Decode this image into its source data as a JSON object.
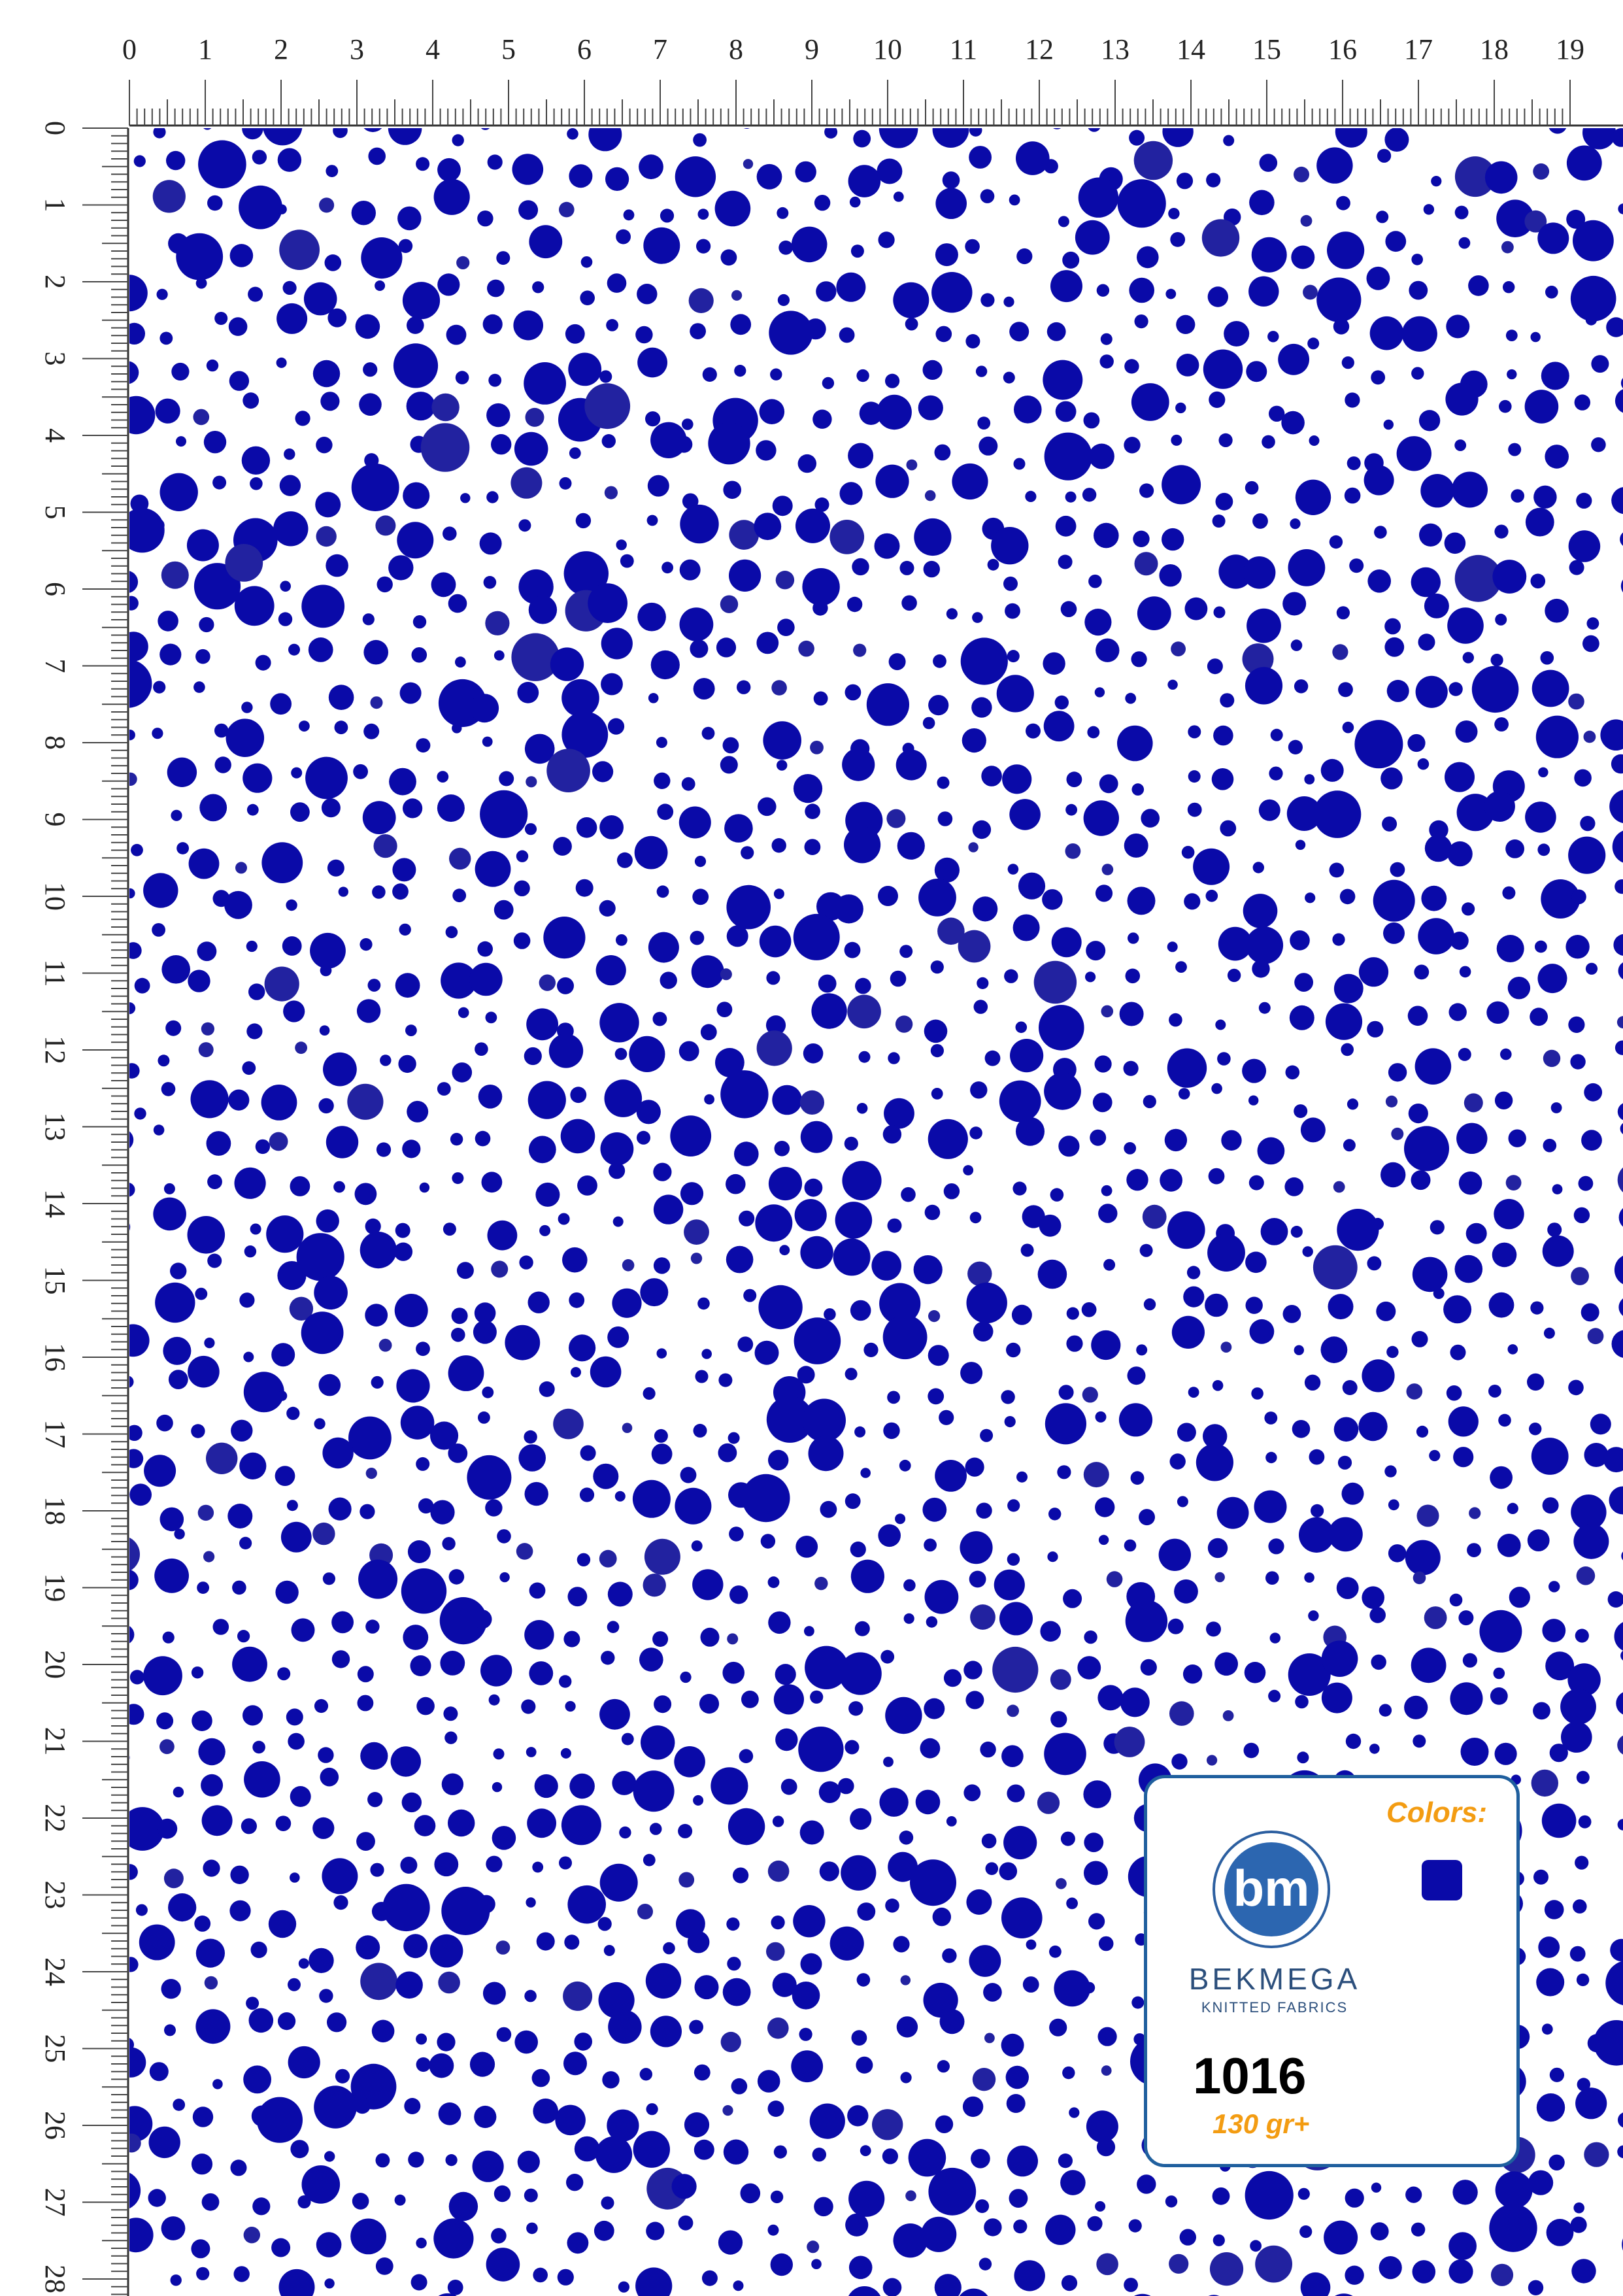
{
  "rulers": {
    "top_labels": [
      "0",
      "1",
      "2",
      "3",
      "4",
      "5",
      "6",
      "7",
      "8",
      "9",
      "10",
      "11",
      "12",
      "13",
      "14",
      "15",
      "16",
      "17",
      "18",
      "19"
    ],
    "left_labels": [
      "0",
      "1",
      "2",
      "3",
      "4",
      "5",
      "6",
      "7",
      "8",
      "9",
      "10",
      "11",
      "12",
      "13",
      "14",
      "15",
      "16",
      "17",
      "18",
      "19",
      "20",
      "21",
      "22",
      "23",
      "24",
      "25",
      "26",
      "27",
      "28"
    ]
  },
  "pattern": {
    "dot_color": "#0a0aa8",
    "dot_color_alt": "#2222a0",
    "background": "#ffffff"
  },
  "card": {
    "colors_label": "Colors:",
    "swatch_color": "#0a0aa8",
    "brand_name": "BEKMEGA",
    "brand_sub": "KNITTED FABRICS",
    "logo_letters": "bm",
    "product_code": "1016",
    "weight": "130 gr+"
  }
}
